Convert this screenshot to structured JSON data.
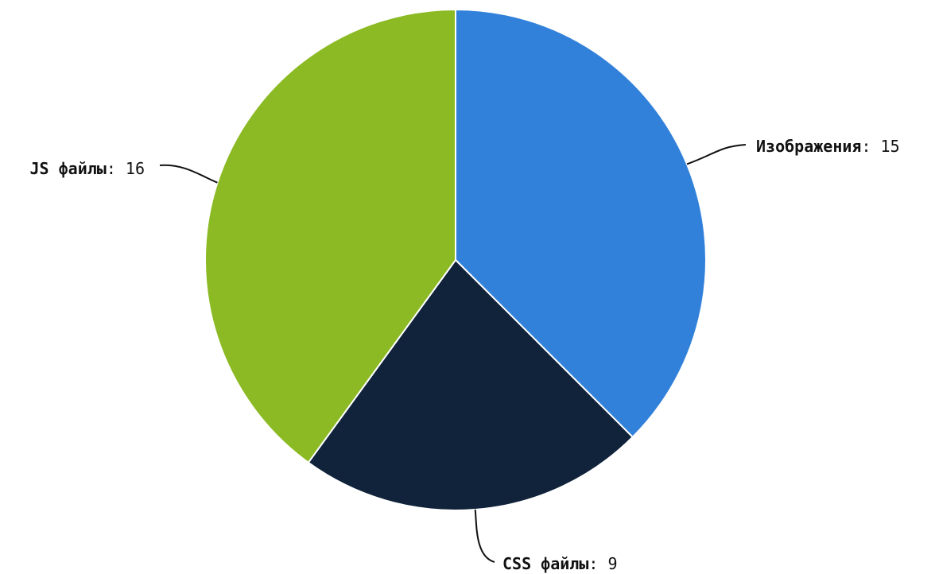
{
  "chart_data": {
    "type": "pie",
    "title": "",
    "separator": ": ",
    "slices": [
      {
        "label": "Изображения",
        "value": 15,
        "color": "#3181DA"
      },
      {
        "label": "CSS файлы",
        "value": 9,
        "color": "#10233A"
      },
      {
        "label": "JS файлы",
        "value": 16,
        "color": "#8BBA24"
      }
    ],
    "start_angle": "12 o'clock",
    "direction": "clockwise",
    "legend": "none",
    "data_labels": "outside with leader lines"
  }
}
